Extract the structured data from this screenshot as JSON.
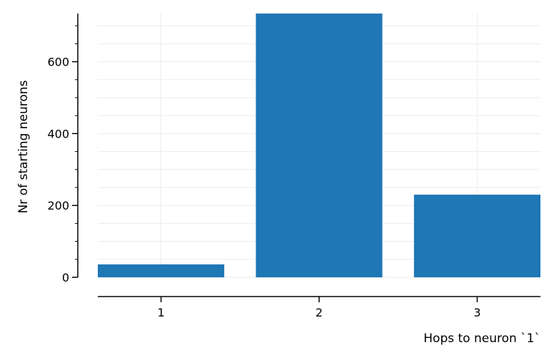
{
  "chart_data": {
    "type": "bar",
    "categories": [
      "1",
      "2",
      "3"
    ],
    "values": [
      36,
      734,
      230
    ],
    "xlabel": "Hops to neuron `1`",
    "ylabel": "Nr of starting neurons",
    "ylim": [
      0,
      734
    ],
    "yticks": [
      0,
      200,
      400,
      600
    ],
    "yticks_minor_step": 50,
    "grid": true,
    "bar_color": "#1f77b4",
    "grid_color": "#ebebeb"
  }
}
